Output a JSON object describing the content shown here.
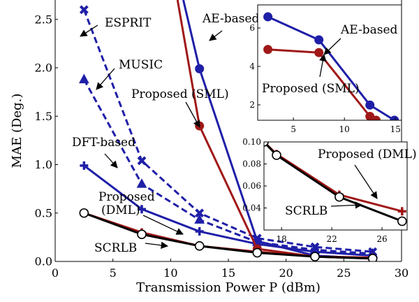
{
  "colors": {
    "blue": "#1f1fa8",
    "red": "#a01818",
    "black": "#000000"
  },
  "chart_data": {
    "type": "line",
    "main": {
      "xlabel": "Transmission Power P (dBm)",
      "ylabel": "MAE (Deg.)",
      "xlim": [
        0,
        30
      ],
      "ylim": [
        0,
        2.7
      ],
      "xticks": [
        0,
        5,
        10,
        15,
        20,
        25,
        30
      ],
      "yticks": [
        0.0,
        0.5,
        1.0,
        1.5,
        2.0,
        2.5
      ],
      "xtick_labels": [
        "0",
        "5",
        "10",
        "15",
        "20",
        "25",
        "30"
      ],
      "ytick_labels": [
        "0.0",
        "0.5",
        "1.0",
        "1.5",
        "2.0",
        "2.5"
      ],
      "series": [
        {
          "name": "ESPRIT",
          "color": "#1f1fa8",
          "dash": true,
          "marker": "x",
          "x": [
            2.5,
            7.5,
            12.5,
            17.5,
            22.5,
            27.5
          ],
          "y": [
            2.6,
            1.04,
            0.5,
            0.24,
            0.15,
            0.1
          ]
        },
        {
          "name": "MUSIC",
          "color": "#1f1fa8",
          "dash": true,
          "marker": "triangle",
          "x": [
            2.5,
            7.5,
            12.5,
            17.5,
            22.5,
            27.5
          ],
          "y": [
            1.88,
            0.8,
            0.43,
            0.2,
            0.12,
            0.08
          ]
        },
        {
          "name": "DFT-based",
          "color": "#1f1fa8",
          "dash": false,
          "marker": "plus",
          "x": [
            2.5,
            7.5,
            12.5,
            17.5,
            22.5,
            27.5
          ],
          "y": [
            0.99,
            0.54,
            0.31,
            0.18,
            0.1,
            0.06
          ]
        },
        {
          "name": "AE-based",
          "color": "#1f1fa8",
          "dash": false,
          "marker": "circle",
          "x": [
            12.5,
            17.5,
            22.5,
            27.5
          ],
          "y": [
            1.99,
            0.21,
            0.06,
            0.03
          ]
        },
        {
          "name": "Proposed (SML)",
          "color": "#a01818",
          "dash": false,
          "marker": "circle",
          "x": [
            12.5,
            17.5,
            22.5,
            27.5
          ],
          "y": [
            1.4,
            0.13,
            0.05,
            0.03
          ]
        },
        {
          "name": "Proposed (DML)",
          "color": "#a01818",
          "dash": false,
          "marker": "plus",
          "x": [
            2.5,
            7.5,
            12.5,
            17.5,
            22.5,
            27.5
          ],
          "y": [
            0.5,
            0.3,
            0.16,
            0.1,
            0.05,
            0.04
          ]
        },
        {
          "name": "SCRLB",
          "color": "#000000",
          "dash": false,
          "marker": "open-circle",
          "x": [
            2.5,
            7.5,
            12.5,
            17.5,
            22.5,
            27.5
          ],
          "y": [
            0.5,
            0.28,
            0.16,
            0.09,
            0.05,
            0.03
          ]
        }
      ],
      "annotations": [
        "ESPRIT",
        "MUSIC",
        "DFT-based",
        "AE-based",
        "Proposed (SML)",
        "Proposed",
        "(DML)",
        "SCRLB"
      ]
    },
    "inset_top": {
      "xlim": [
        1.5,
        15.6
      ],
      "ylim": [
        1.2,
        7.2
      ],
      "xticks": [
        5,
        10,
        15
      ],
      "yticks": [
        2,
        4,
        6
      ],
      "xtick_labels": [
        "5",
        "10",
        "15"
      ],
      "ytick_labels": [
        "2",
        "4",
        "6"
      ],
      "series": [
        {
          "name": "AE-based",
          "color": "#1f1fa8",
          "marker": "circle",
          "x": [
            2.5,
            7.5,
            12.5,
            14.9
          ],
          "y": [
            6.58,
            5.38,
            1.99,
            1.2
          ]
        },
        {
          "name": "Proposed (SML)",
          "color": "#a01818",
          "marker": "circle",
          "x": [
            2.5,
            7.5,
            12.5,
            13.1
          ],
          "y": [
            4.88,
            4.72,
            1.4,
            1.2
          ]
        }
      ],
      "annotations": [
        "AE-based",
        "Proposed (SML)"
      ]
    },
    "inset_bottom": {
      "xlim": [
        16.6,
        28.0
      ],
      "ylim": [
        0.02,
        0.1
      ],
      "xticks": [
        18,
        22,
        26
      ],
      "yticks": [
        0.04,
        0.06,
        0.08,
        0.1
      ],
      "xtick_labels": [
        "18",
        "22",
        "26"
      ],
      "ytick_labels": [
        "0.04",
        "0.06",
        "0.08",
        "0.10"
      ],
      "series": [
        {
          "name": "Proposed (DML)",
          "color": "#a01818",
          "marker": "plus",
          "x": [
            16.6,
            17.6,
            22.6,
            27.6
          ],
          "y": [
            0.1,
            0.089,
            0.052,
            0.037
          ]
        },
        {
          "name": "SCRLB",
          "color": "#000000",
          "marker": "open-circle",
          "x": [
            16.6,
            17.6,
            22.6,
            27.6
          ],
          "y": [
            0.1,
            0.088,
            0.05,
            0.028
          ]
        }
      ],
      "annotations": [
        "Proposed (DML)",
        "SCRLB"
      ]
    }
  }
}
